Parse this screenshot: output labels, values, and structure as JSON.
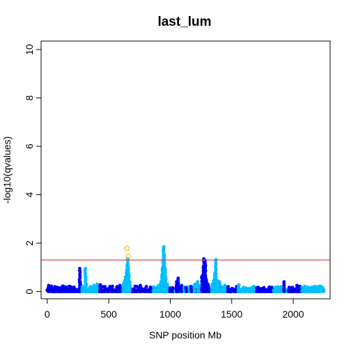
{
  "chart_data": {
    "type": "scatter",
    "title": "last_lum",
    "xlabel": "SNP position Mb",
    "ylabel": "-log10(qvalues)",
    "xlim": [
      -50,
      2300
    ],
    "ylim": [
      -0.3,
      10.35
    ],
    "x_ticks": [
      0,
      500,
      1000,
      1500,
      2000
    ],
    "y_ticks": [
      0,
      2,
      4,
      6,
      8,
      10
    ],
    "threshold": 1.3,
    "threshold_color": "#e34a4a",
    "colors": {
      "dark": "#0000ee",
      "light": "#00bfff",
      "significant": "#ffa500"
    },
    "chromosome_bounds": [
      0,
      268,
      422,
      600,
      680,
      860,
      920,
      1040,
      1190,
      1330,
      1460,
      1560,
      1700,
      1840,
      1960,
      2070,
      2250
    ],
    "peaks": [
      {
        "x": 10,
        "y": 0.25,
        "c": "dark"
      },
      {
        "x": 35,
        "y": 0.22,
        "c": "dark"
      },
      {
        "x": 60,
        "y": 0.2,
        "c": "dark"
      },
      {
        "x": 90,
        "y": 0.15,
        "c": "dark"
      },
      {
        "x": 125,
        "y": 0.22,
        "c": "dark"
      },
      {
        "x": 180,
        "y": 0.12,
        "c": "dark"
      },
      {
        "x": 225,
        "y": 0.1,
        "c": "dark"
      },
      {
        "x": 265,
        "y": 0.95,
        "c": "dark"
      },
      {
        "x": 268,
        "y": 0.4,
        "c": "dark"
      },
      {
        "x": 270,
        "y": 0.3,
        "c": "dark"
      },
      {
        "x": 285,
        "y": 0.2,
        "c": "light"
      },
      {
        "x": 310,
        "y": 0.95,
        "c": "light"
      },
      {
        "x": 312,
        "y": 0.6,
        "c": "light"
      },
      {
        "x": 318,
        "y": 0.3,
        "c": "light"
      },
      {
        "x": 350,
        "y": 0.2,
        "c": "light"
      },
      {
        "x": 380,
        "y": 0.25,
        "c": "light"
      },
      {
        "x": 405,
        "y": 0.3,
        "c": "light"
      },
      {
        "x": 430,
        "y": 0.28,
        "c": "dark"
      },
      {
        "x": 470,
        "y": 0.2,
        "c": "dark"
      },
      {
        "x": 520,
        "y": 0.15,
        "c": "dark"
      },
      {
        "x": 565,
        "y": 0.2,
        "c": "dark"
      },
      {
        "x": 590,
        "y": 0.25,
        "c": "dark"
      },
      {
        "x": 618,
        "y": 0.3,
        "c": "light"
      },
      {
        "x": 628,
        "y": 0.45,
        "c": "light"
      },
      {
        "x": 638,
        "y": 0.6,
        "c": "light"
      },
      {
        "x": 645,
        "y": 0.9,
        "c": "light"
      },
      {
        "x": 650,
        "y": 1.1,
        "c": "light"
      },
      {
        "x": 655,
        "y": 1.35,
        "c": "light"
      },
      {
        "x": 660,
        "y": 1.0,
        "c": "light"
      },
      {
        "x": 665,
        "y": 0.7,
        "c": "light"
      },
      {
        "x": 672,
        "y": 0.4,
        "c": "light"
      },
      {
        "x": 700,
        "y": 0.1,
        "c": "dark"
      },
      {
        "x": 760,
        "y": 0.25,
        "c": "dark"
      },
      {
        "x": 800,
        "y": 0.12,
        "c": "dark"
      },
      {
        "x": 840,
        "y": 0.18,
        "c": "dark"
      },
      {
        "x": 880,
        "y": 0.15,
        "c": "light"
      },
      {
        "x": 905,
        "y": 0.25,
        "c": "light"
      },
      {
        "x": 925,
        "y": 0.4,
        "c": "light"
      },
      {
        "x": 932,
        "y": 0.7,
        "c": "light"
      },
      {
        "x": 938,
        "y": 1.0,
        "c": "light"
      },
      {
        "x": 942,
        "y": 1.3,
        "c": "light"
      },
      {
        "x": 945,
        "y": 1.7,
        "c": "light"
      },
      {
        "x": 948,
        "y": 1.85,
        "c": "light"
      },
      {
        "x": 952,
        "y": 1.5,
        "c": "light"
      },
      {
        "x": 958,
        "y": 1.0,
        "c": "light"
      },
      {
        "x": 965,
        "y": 0.6,
        "c": "light"
      },
      {
        "x": 975,
        "y": 0.3,
        "c": "light"
      },
      {
        "x": 1000,
        "y": 0.15,
        "c": "dark"
      },
      {
        "x": 1050,
        "y": 0.4,
        "c": "dark"
      },
      {
        "x": 1065,
        "y": 0.55,
        "c": "dark"
      },
      {
        "x": 1090,
        "y": 0.25,
        "c": "dark"
      },
      {
        "x": 1130,
        "y": 0.15,
        "c": "dark"
      },
      {
        "x": 1170,
        "y": 0.2,
        "c": "dark"
      },
      {
        "x": 1200,
        "y": 0.3,
        "c": "light"
      },
      {
        "x": 1225,
        "y": 0.4,
        "c": "light"
      },
      {
        "x": 1240,
        "y": 0.25,
        "c": "light"
      },
      {
        "x": 1258,
        "y": 0.65,
        "c": "dark"
      },
      {
        "x": 1270,
        "y": 1.05,
        "c": "dark"
      },
      {
        "x": 1275,
        "y": 1.35,
        "c": "dark"
      },
      {
        "x": 1285,
        "y": 1.28,
        "c": "dark"
      },
      {
        "x": 1295,
        "y": 0.5,
        "c": "dark"
      },
      {
        "x": 1310,
        "y": 0.3,
        "c": "dark"
      },
      {
        "x": 1340,
        "y": 0.3,
        "c": "light"
      },
      {
        "x": 1355,
        "y": 0.5,
        "c": "light"
      },
      {
        "x": 1362,
        "y": 0.75,
        "c": "light"
      },
      {
        "x": 1370,
        "y": 1.32,
        "c": "light"
      },
      {
        "x": 1380,
        "y": 0.45,
        "c": "light"
      },
      {
        "x": 1400,
        "y": 0.4,
        "c": "light"
      },
      {
        "x": 1420,
        "y": 0.2,
        "c": "light"
      },
      {
        "x": 1445,
        "y": 0.25,
        "c": "light"
      },
      {
        "x": 1470,
        "y": 0.2,
        "c": "dark"
      },
      {
        "x": 1500,
        "y": 0.12,
        "c": "dark"
      },
      {
        "x": 1540,
        "y": 0.2,
        "c": "dark"
      },
      {
        "x": 1555,
        "y": 0.28,
        "c": "light"
      },
      {
        "x": 1600,
        "y": 0.15,
        "c": "light"
      },
      {
        "x": 1660,
        "y": 0.12,
        "c": "light"
      },
      {
        "x": 1740,
        "y": 0.12,
        "c": "dark"
      },
      {
        "x": 1800,
        "y": 0.15,
        "c": "dark"
      },
      {
        "x": 1870,
        "y": 0.2,
        "c": "light"
      },
      {
        "x": 1930,
        "y": 0.1,
        "c": "light"
      },
      {
        "x": 1925,
        "y": 0.4,
        "c": "dark"
      },
      {
        "x": 1990,
        "y": 0.15,
        "c": "dark"
      },
      {
        "x": 2030,
        "y": 0.25,
        "c": "dark"
      },
      {
        "x": 2090,
        "y": 0.1,
        "c": "light"
      },
      {
        "x": 2150,
        "y": 0.15,
        "c": "light"
      },
      {
        "x": 2220,
        "y": 0.22,
        "c": "light"
      }
    ],
    "significant": [
      {
        "x": 648,
        "y": 1.78
      },
      {
        "x": 658,
        "y": 1.45
      }
    ]
  }
}
